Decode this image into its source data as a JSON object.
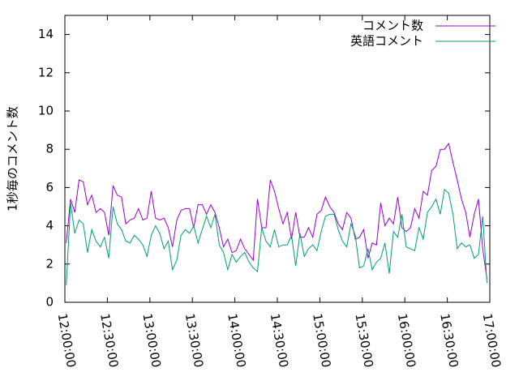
{
  "chart_data": {
    "type": "line",
    "ylabel": "1秒毎のコメント数",
    "x": [
      "12:01:00",
      "12:04:00",
      "12:07:00",
      "12:10:00",
      "12:13:00",
      "12:16:00",
      "12:19:00",
      "12:22:00",
      "12:25:00",
      "12:28:00",
      "12:31:00",
      "12:34:00",
      "12:37:00",
      "12:40:00",
      "12:43:00",
      "12:46:00",
      "12:49:00",
      "12:52:00",
      "12:55:00",
      "12:58:00",
      "13:01:00",
      "13:04:00",
      "13:07:00",
      "13:10:00",
      "13:13:00",
      "13:16:00",
      "13:19:00",
      "13:22:00",
      "13:25:00",
      "13:28:00",
      "13:31:00",
      "13:34:00",
      "13:37:00",
      "13:40:00",
      "13:43:00",
      "13:46:00",
      "13:49:00",
      "13:52:00",
      "13:55:00",
      "13:58:00",
      "14:01:00",
      "14:04:00",
      "14:07:00",
      "14:10:00",
      "14:13:00",
      "14:16:00",
      "14:19:00",
      "14:22:00",
      "14:25:00",
      "14:28:00",
      "14:31:00",
      "14:34:00",
      "14:37:00",
      "14:40:00",
      "14:43:00",
      "14:46:00",
      "14:49:00",
      "14:52:00",
      "14:55:00",
      "14:58:00",
      "15:01:00",
      "15:04:00",
      "15:07:00",
      "15:10:00",
      "15:13:00",
      "15:16:00",
      "15:19:00",
      "15:22:00",
      "15:25:00",
      "15:28:00",
      "15:31:00",
      "15:34:00",
      "15:37:00",
      "15:40:00",
      "15:43:00",
      "15:46:00",
      "15:49:00",
      "15:52:00",
      "15:55:00",
      "15:58:00",
      "16:01:00",
      "16:04:00",
      "16:07:00",
      "16:10:00",
      "16:13:00",
      "16:16:00",
      "16:19:00",
      "16:22:00",
      "16:25:00",
      "16:28:00",
      "16:31:00",
      "16:34:00",
      "16:37:00",
      "16:40:00",
      "16:43:00",
      "16:46:00",
      "16:49:00",
      "16:52:00",
      "16:55:00",
      "16:58:00"
    ],
    "series": [
      {
        "name": "コメント数",
        "color": "#9400d3",
        "values": [
          3.1,
          5.4,
          4.7,
          6.4,
          6.3,
          5.1,
          5.6,
          4.7,
          4.9,
          4.7,
          3.5,
          6.1,
          5.6,
          5.5,
          4.1,
          4.3,
          4.4,
          4.9,
          4.3,
          4.4,
          5.8,
          4.4,
          4.3,
          4.4,
          3.9,
          2.9,
          4.3,
          4.8,
          4.9,
          4.9,
          3.9,
          5.1,
          5.1,
          4.6,
          5.1,
          4.7,
          3.9,
          2.9,
          3.3,
          2.6,
          2.7,
          3.3,
          2.8,
          2.5,
          2.2,
          5.4,
          3.9,
          3.9,
          6.4,
          5.8,
          4.9,
          4.1,
          4.7,
          3.3,
          4.7,
          3.4,
          3.4,
          3.9,
          3.4,
          4.6,
          4.8,
          5.5,
          5.0,
          4.7,
          4.1,
          3.8,
          4.7,
          4.4,
          3.3,
          3.4,
          3.8,
          2.3,
          3.1,
          3.0,
          5.2,
          4.0,
          4.4,
          4.1,
          5.5,
          3.9,
          3.7,
          3.9,
          4.9,
          4.4,
          5.8,
          5.6,
          6.9,
          7.1,
          8.0,
          8.0,
          8.3,
          7.3,
          6.4,
          5.4,
          4.7,
          3.4,
          4.6,
          5.4,
          2.8,
          1.2
        ]
      },
      {
        "name": "英語コメント",
        "color": "#009e73",
        "values": [
          0.9,
          5.2,
          3.6,
          4.3,
          4.1,
          2.6,
          3.8,
          3.2,
          2.9,
          3.4,
          2.3,
          5.0,
          4.1,
          3.8,
          3.2,
          3.1,
          3.5,
          3.3,
          3.0,
          2.4,
          3.5,
          4.0,
          3.6,
          2.8,
          3.2,
          1.7,
          2.2,
          3.5,
          3.8,
          3.6,
          4.0,
          3.1,
          3.8,
          4.5,
          3.9,
          4.6,
          3.0,
          2.6,
          1.7,
          2.5,
          2.1,
          2.4,
          2.6,
          2.1,
          1.8,
          1.6,
          3.9,
          3.2,
          2.9,
          3.8,
          2.9,
          3.0,
          3.0,
          3.5,
          1.9,
          3.6,
          2.4,
          2.8,
          3.0,
          2.7,
          3.7,
          4.5,
          4.6,
          4.6,
          3.8,
          3.2,
          2.9,
          4.1,
          3.5,
          1.8,
          1.9,
          2.8,
          1.7,
          2.1,
          2.3,
          3.1,
          1.5,
          3.7,
          3.4,
          4.6,
          2.9,
          2.8,
          2.7,
          3.9,
          3.3,
          4.7,
          5.0,
          5.4,
          4.6,
          5.9,
          5.7,
          4.6,
          2.8,
          3.1,
          2.9,
          3.0,
          2.3,
          2.5,
          4.5,
          1.0
        ]
      }
    ],
    "xlim": [
      "12:00:00",
      "17:00:00"
    ],
    "xticks": [
      "12:00:00",
      "12:30:00",
      "13:00:00",
      "13:30:00",
      "14:00:00",
      "14:30:00",
      "15:00:00",
      "15:30:00",
      "16:00:00",
      "16:30:00",
      "17:00:00"
    ],
    "ylim": [
      0,
      15
    ],
    "yticks": [
      0,
      2,
      4,
      6,
      8,
      10,
      12,
      14
    ],
    "grid": false,
    "legend": "top-right"
  }
}
